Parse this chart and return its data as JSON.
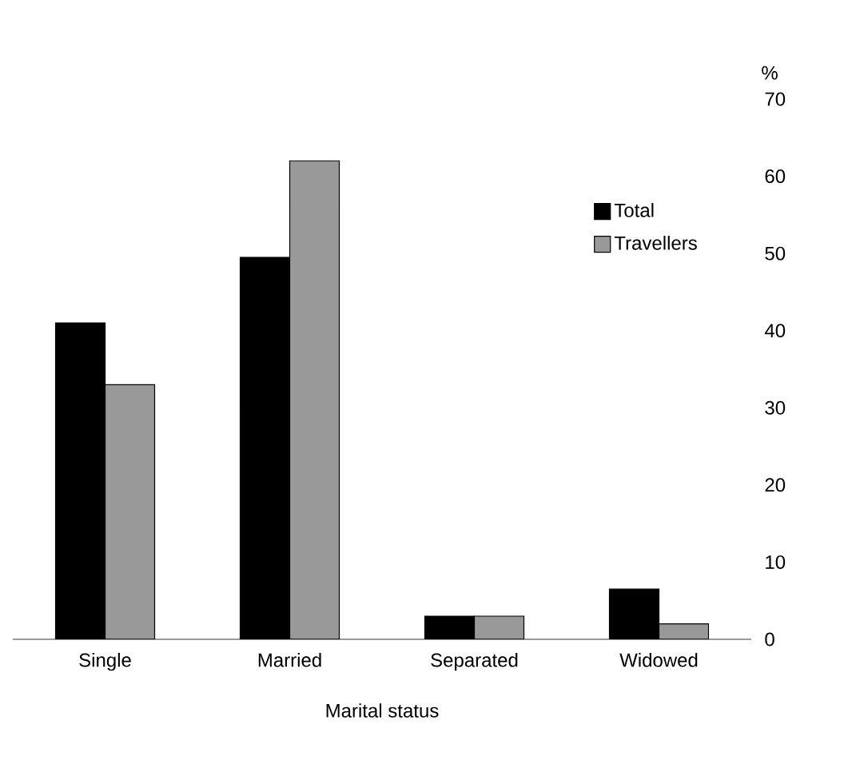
{
  "chart_data": {
    "type": "bar",
    "xlabel": "Marital status",
    "ylabel": "%",
    "categories": [
      "Single",
      "Married",
      "Separated",
      "Widowed"
    ],
    "series": [
      {
        "name": "Total",
        "color": "#000000",
        "values": [
          41,
          49.5,
          3,
          6.5
        ]
      },
      {
        "name": "Travellers",
        "color": "#999999",
        "values": [
          33,
          62,
          3,
          2
        ]
      }
    ],
    "ylim": [
      0,
      70
    ],
    "yticks": [
      0,
      10,
      20,
      30,
      40,
      50,
      60,
      70
    ],
    "legend": "top right"
  }
}
